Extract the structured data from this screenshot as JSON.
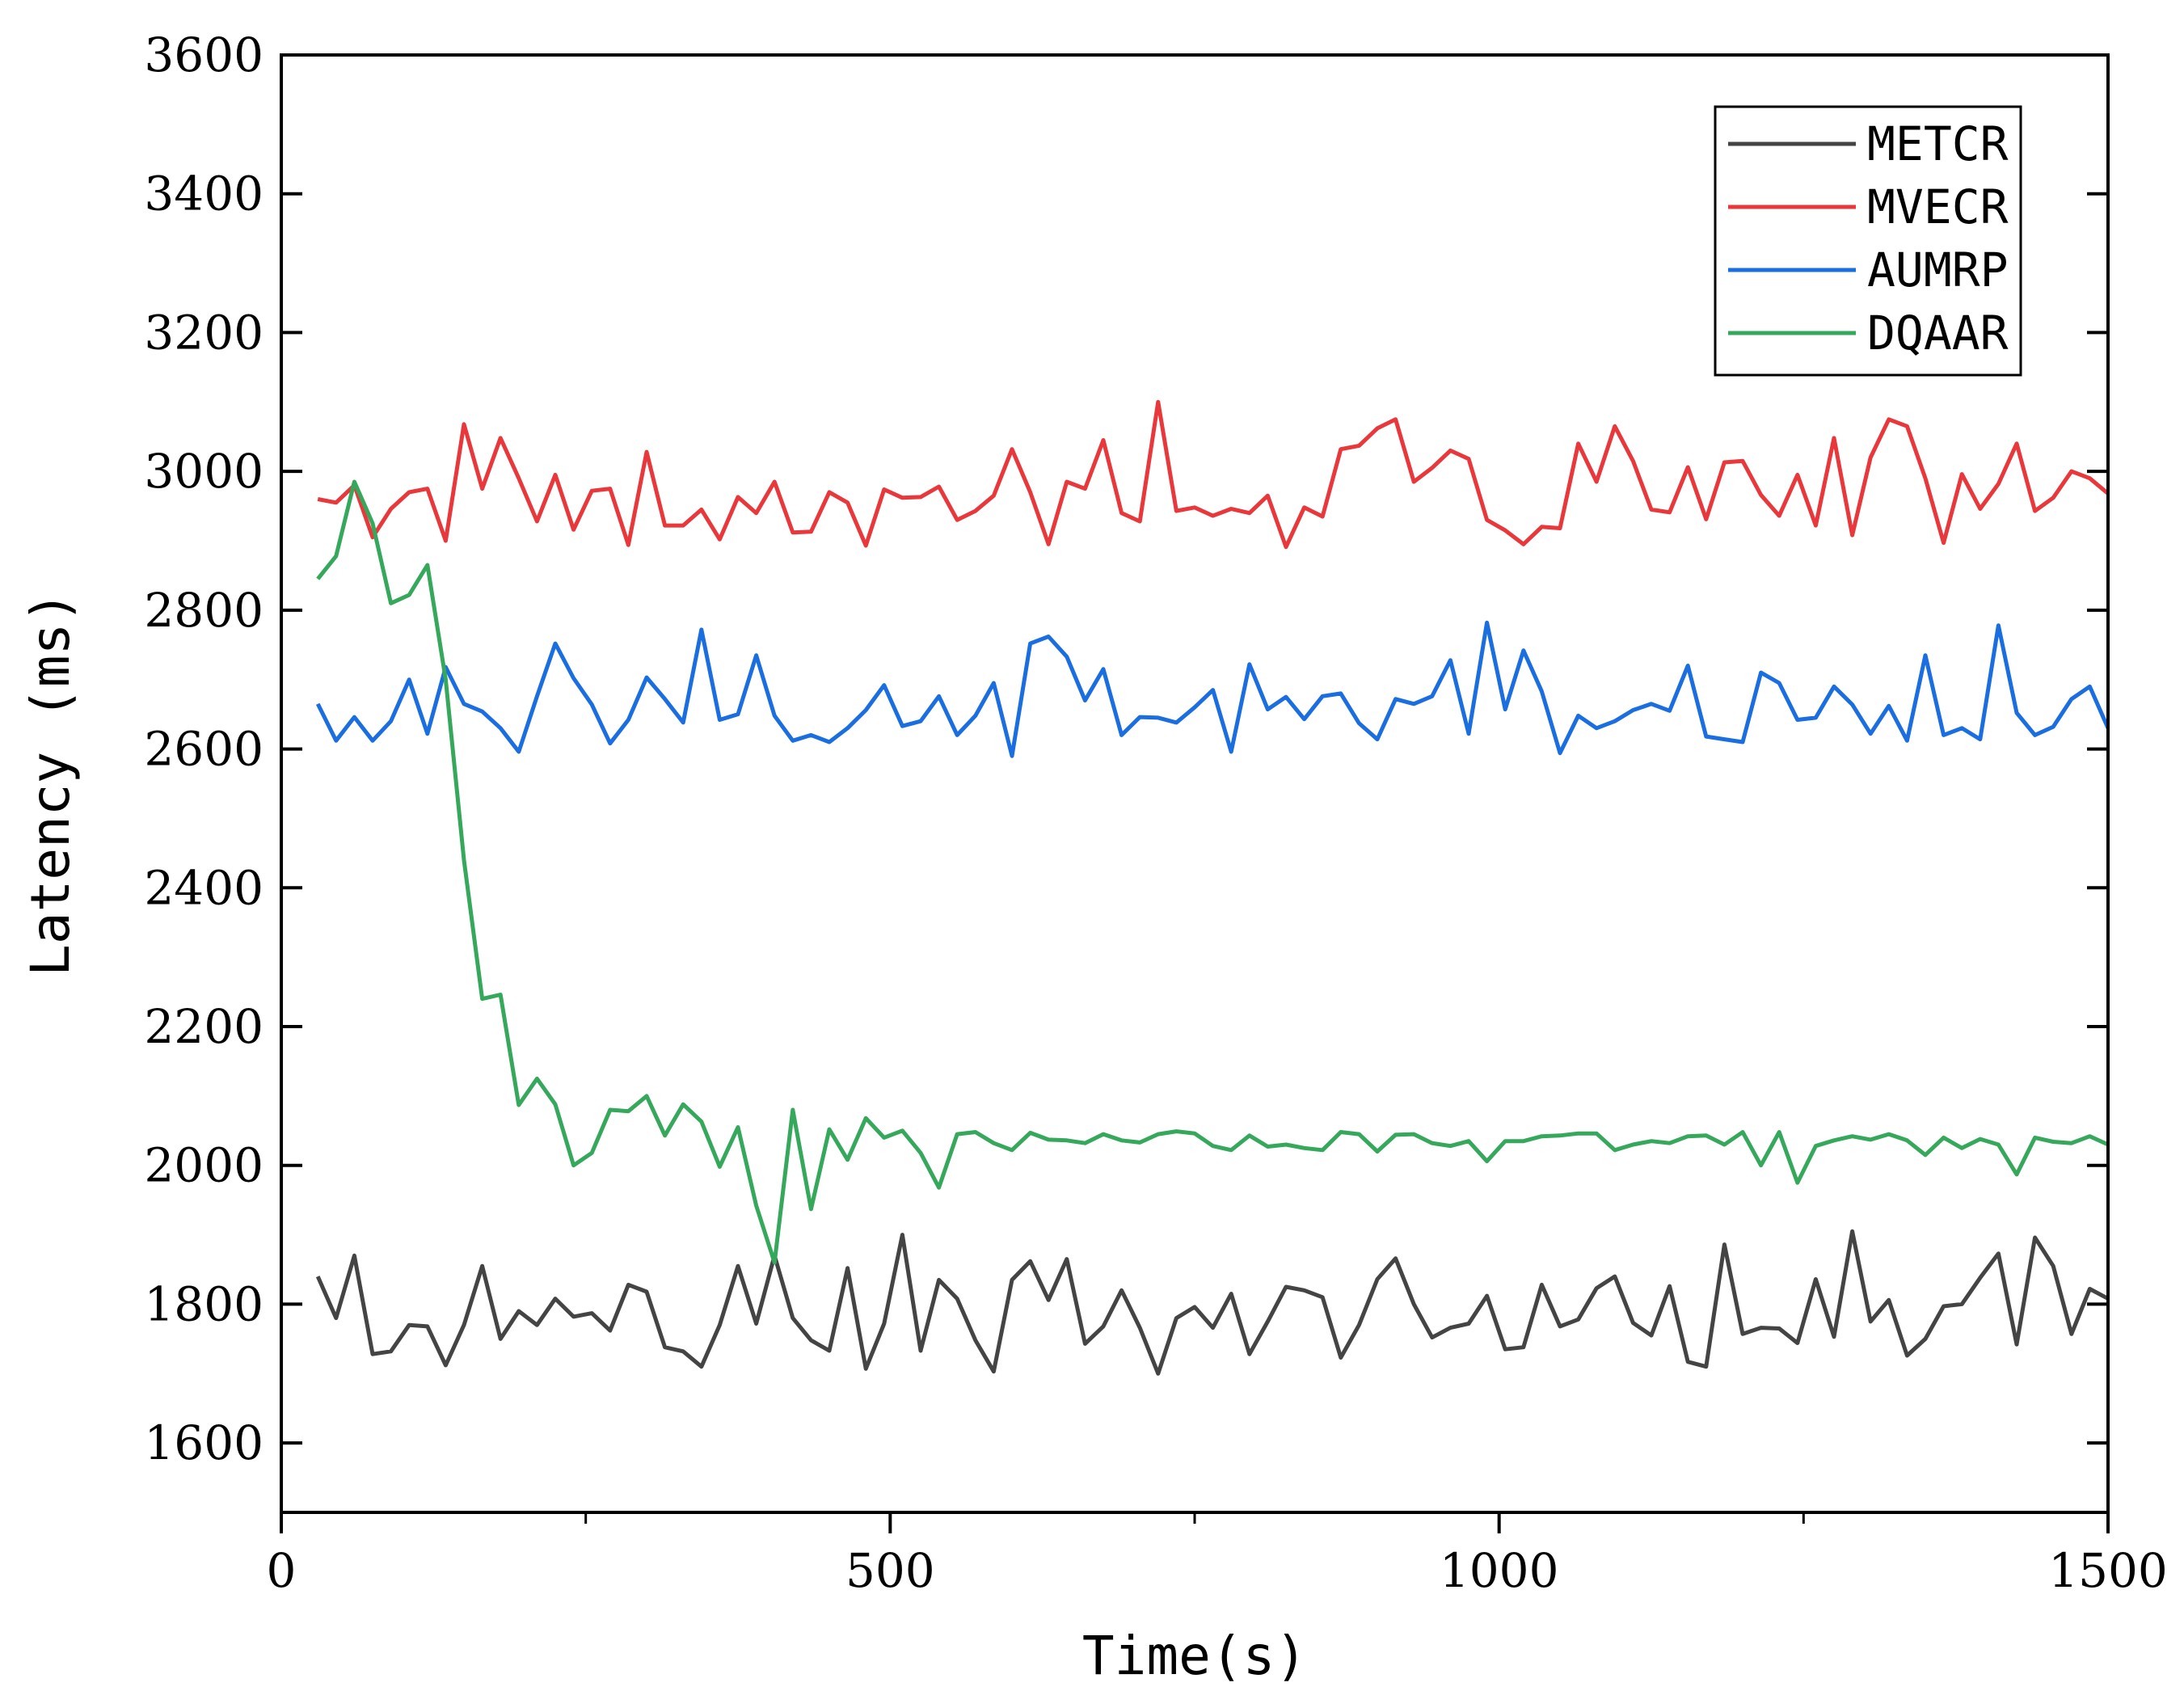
{
  "chart_data": {
    "type": "line",
    "title": "",
    "xlabel": "Time(s)",
    "ylabel": "Latency (ms)",
    "xlim": [
      0,
      1500
    ],
    "ylim": [
      1500,
      3600
    ],
    "xticks": [
      0,
      500,
      1000,
      1500
    ],
    "yticks": [
      1600,
      1800,
      2000,
      2200,
      2400,
      2600,
      2800,
      3000,
      3200,
      3400,
      3600
    ],
    "grid": false,
    "legend": "top-right",
    "x": [
      30,
      45,
      60,
      75,
      90,
      105,
      120,
      135,
      150,
      165,
      180,
      195,
      210,
      225,
      240,
      255,
      270,
      285,
      300,
      315,
      330,
      345,
      360,
      375,
      390,
      405,
      420,
      435,
      450,
      465,
      480,
      495,
      510,
      525,
      540,
      555,
      570,
      585,
      600,
      615,
      630,
      645,
      660,
      675,
      690,
      705,
      720,
      735,
      750,
      765,
      780,
      795,
      810,
      825,
      840,
      855,
      870,
      885,
      900,
      915,
      930,
      945,
      960,
      975,
      990,
      1005,
      1020,
      1035,
      1050,
      1065,
      1080,
      1095,
      1110,
      1125,
      1140,
      1155,
      1170,
      1185,
      1200,
      1215,
      1230,
      1245,
      1260,
      1275,
      1290,
      1305,
      1320,
      1335,
      1350,
      1365,
      1380,
      1395,
      1410,
      1425,
      1440,
      1455,
      1470,
      1485,
      1500
    ],
    "series": [
      {
        "name": "METCR",
        "color": "#444444",
        "values": [
          1840,
          1780,
          1870,
          1728,
          1732,
          1770,
          1768,
          1712,
          1770,
          1855,
          1750,
          1790,
          1770,
          1808,
          1782,
          1787,
          1762,
          1828,
          1818,
          1738,
          1732,
          1710,
          1770,
          1855,
          1772,
          1870,
          1780,
          1748,
          1733,
          1852,
          1707,
          1772,
          1900,
          1733,
          1835,
          1808,
          1748,
          1703,
          1835,
          1862,
          1806,
          1865,
          1743,
          1768,
          1820,
          1766,
          1700,
          1780,
          1796,
          1766,
          1815,
          1728,
          1775,
          1825,
          1820,
          1810,
          1723,
          1770,
          1836,
          1866,
          1800,
          1752,
          1766,
          1772,
          1812,
          1735,
          1738,
          1828,
          1768,
          1778,
          1823,
          1840,
          1773,
          1755,
          1826,
          1717,
          1710,
          1886,
          1757,
          1766,
          1765,
          1744,
          1836,
          1753,
          1905,
          1775,
          1806,
          1726,
          1750,
          1797,
          1800,
          1838,
          1873,
          1742,
          1896,
          1855,
          1757,
          1822,
          1808
        ]
      },
      {
        "name": "MVECR",
        "color": "#e8383b",
        "values": [
          2960,
          2955,
          2980,
          2905,
          2946,
          2970,
          2975,
          2900,
          3068,
          2975,
          3048,
          2990,
          2928,
          2995,
          2916,
          2972,
          2975,
          2894,
          3028,
          2922,
          2922,
          2945,
          2902,
          2963,
          2940,
          2985,
          2912,
          2913,
          2970,
          2955,
          2893,
          2974,
          2962,
          2963,
          2978,
          2930,
          2943,
          2965,
          3032,
          2970,
          2895,
          2985,
          2975,
          3045,
          2940,
          2928,
          3100,
          2943,
          2948,
          2936,
          2946,
          2940,
          2965,
          2891,
          2948,
          2935,
          3032,
          3037,
          3062,
          3075,
          2985,
          3005,
          3030,
          3018,
          2930,
          2915,
          2895,
          2920,
          2918,
          3040,
          2985,
          3065,
          3015,
          2945,
          2941,
          3006,
          2931,
          3013,
          3015,
          2966,
          2936,
          2995,
          2922,
          3048,
          2908,
          3020,
          3075,
          3065,
          2990,
          2897,
          2996,
          2946,
          2982,
          3040,
          2943,
          2962,
          3000,
          2990,
          2968
        ]
      },
      {
        "name": "AUMRP",
        "color": "#1a6ee0",
        "values": [
          2665,
          2612,
          2646,
          2612,
          2640,
          2700,
          2622,
          2718,
          2665,
          2654,
          2630,
          2596,
          2676,
          2752,
          2702,
          2664,
          2608,
          2642,
          2703,
          2672,
          2638,
          2772,
          2642,
          2650,
          2735,
          2648,
          2612,
          2620,
          2610,
          2630,
          2656,
          2692,
          2633,
          2640,
          2676,
          2620,
          2648,
          2695,
          2590,
          2752,
          2762,
          2733,
          2670,
          2715,
          2620,
          2646,
          2645,
          2638,
          2660,
          2685,
          2596,
          2722,
          2657,
          2675,
          2643,
          2676,
          2680,
          2637,
          2614,
          2672,
          2665,
          2676,
          2728,
          2622,
          2782,
          2657,
          2742,
          2683,
          2594,
          2648,
          2630,
          2640,
          2656,
          2665,
          2655,
          2720,
          2618,
          2614,
          2610,
          2710,
          2695,
          2642,
          2645,
          2690,
          2664,
          2622,
          2662,
          2612,
          2735,
          2620,
          2630,
          2614,
          2778,
          2652,
          2620,
          2632,
          2672,
          2690,
          2630
        ]
      },
      {
        "name": "DQAAR",
        "color": "#35a85b",
        "values": [
          2845,
          2878,
          2985,
          2925,
          2810,
          2822,
          2865,
          2700,
          2440,
          2240,
          2246,
          2087,
          2125,
          2088,
          2000,
          2018,
          2080,
          2078,
          2100,
          2043,
          2088,
          2063,
          1998,
          2055,
          1942,
          1860,
          2080,
          1937,
          2052,
          2008,
          2068,
          2040,
          2050,
          2018,
          1968,
          2045,
          2048,
          2032,
          2022,
          2047,
          2037,
          2036,
          2032,
          2045,
          2036,
          2033,
          2045,
          2049,
          2046,
          2028,
          2022,
          2043,
          2027,
          2030,
          2025,
          2022,
          2048,
          2045,
          2020,
          2044,
          2045,
          2032,
          2028,
          2035,
          2006,
          2035,
          2035,
          2042,
          2043,
          2046,
          2046,
          2022,
          2030,
          2035,
          2032,
          2042,
          2043,
          2030,
          2048,
          2000,
          2048,
          1975,
          2028,
          2036,
          2042,
          2037,
          2045,
          2036,
          2015,
          2040,
          2025,
          2038,
          2030,
          1987,
          2040,
          2034,
          2032,
          2042,
          2030
        ]
      }
    ]
  }
}
